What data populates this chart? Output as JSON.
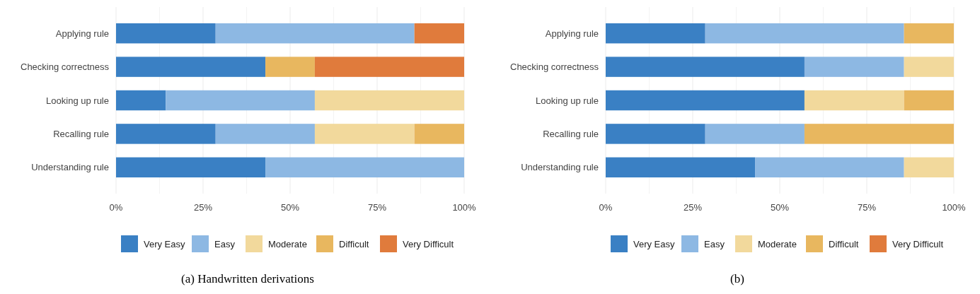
{
  "chart_data": [
    {
      "type": "bar",
      "orientation": "horizontal",
      "stacked": true,
      "title": "(a) Handwritten derivations",
      "categories": [
        "Applying rule",
        "Checking correctness",
        "Looking up rule",
        "Recalling rule",
        "Understanding rule"
      ],
      "series": [
        {
          "name": "Very Easy",
          "color": "#3a80c4",
          "values": [
            28.6,
            42.9,
            14.3,
            28.6,
            42.9
          ]
        },
        {
          "name": "Easy",
          "color": "#8db8e3",
          "values": [
            57.1,
            0,
            42.8,
            28.5,
            57.1
          ]
        },
        {
          "name": "Moderate",
          "color": "#f2d99c",
          "values": [
            0,
            0,
            42.9,
            28.6,
            0
          ]
        },
        {
          "name": "Difficult",
          "color": "#e8b75f",
          "values": [
            0,
            14.2,
            0,
            14.3,
            0
          ]
        },
        {
          "name": "Very Difficult",
          "color": "#e07b3c",
          "values": [
            14.3,
            42.9,
            0,
            0,
            0
          ]
        }
      ],
      "xlim": [
        0,
        100
      ],
      "xticks": [
        {
          "value": 0,
          "label": "0%"
        },
        {
          "value": 25,
          "label": "25%"
        },
        {
          "value": 50,
          "label": "50%"
        },
        {
          "value": 75,
          "label": "75%"
        },
        {
          "value": 100,
          "label": "100%"
        }
      ],
      "grid": "x",
      "legend": "bottom"
    },
    {
      "type": "bar",
      "orientation": "horizontal",
      "stacked": true,
      "title": "(b)",
      "categories": [
        "Applying rule",
        "Checking correctness",
        "Looking up rule",
        "Recalling rule",
        "Understanding rule"
      ],
      "series": [
        {
          "name": "Very Easy",
          "color": "#3a80c4",
          "values": [
            28.6,
            57.1,
            57.1,
            28.6,
            42.9
          ]
        },
        {
          "name": "Easy",
          "color": "#8db8e3",
          "values": [
            57.1,
            28.6,
            0,
            28.5,
            42.8
          ]
        },
        {
          "name": "Moderate",
          "color": "#f2d99c",
          "values": [
            0,
            14.3,
            28.6,
            0,
            14.3
          ]
        },
        {
          "name": "Difficult",
          "color": "#e8b75f",
          "values": [
            14.3,
            0,
            14.3,
            42.9,
            0
          ]
        },
        {
          "name": "Very Difficult",
          "color": "#e07b3c",
          "values": [
            0,
            0,
            0,
            0,
            0
          ]
        }
      ],
      "xlim": [
        0,
        100
      ],
      "xticks": [
        {
          "value": 0,
          "label": "0%"
        },
        {
          "value": 25,
          "label": "25%"
        },
        {
          "value": 50,
          "label": "50%"
        },
        {
          "value": 75,
          "label": "75%"
        },
        {
          "value": 100,
          "label": "100%"
        }
      ],
      "grid": "x",
      "legend": "bottom"
    }
  ]
}
